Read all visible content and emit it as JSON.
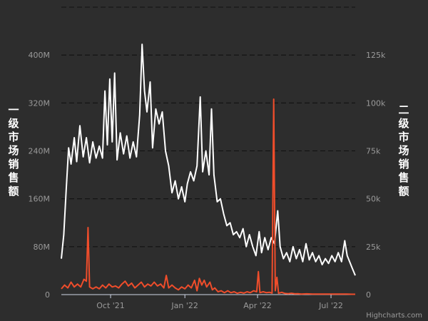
{
  "chart_data": {
    "type": "line",
    "credits": "Highcharts.com",
    "grid": "horizontal dashed",
    "legend": "none",
    "x_ticks": [
      "Oct '21",
      "Jan '22",
      "Apr '22",
      "Jul '22"
    ],
    "x_tick_dates": [
      "2021-10-01",
      "2022-01-01",
      "2022-04-01",
      "2022-07-01"
    ],
    "x_range": [
      "2021-08-01",
      "2022-07-31"
    ],
    "y_left": {
      "title": "一级市场销售额",
      "ticks": [
        "0",
        "80M",
        "160M",
        "240M",
        "320M",
        "400M"
      ],
      "tick_values": [
        0,
        80000000,
        160000000,
        240000000,
        320000000,
        400000000
      ],
      "range": [
        0,
        480000000
      ]
    },
    "y_right": {
      "title": "二级市场销售额",
      "ticks": [
        "0",
        "25k",
        "50k",
        "75k",
        "100k",
        "125k"
      ],
      "tick_values": [
        0,
        25000,
        50000,
        75000,
        100000,
        125000
      ],
      "range": [
        0,
        150000
      ]
    },
    "series": [
      {
        "axis": "left",
        "color": "#ffffff",
        "points": [
          [
            "2021-08-01",
            60000000
          ],
          [
            "2021-08-04",
            100000000
          ],
          [
            "2021-08-07",
            175000000
          ],
          [
            "2021-08-10",
            245000000
          ],
          [
            "2021-08-13",
            218000000
          ],
          [
            "2021-08-17",
            262000000
          ],
          [
            "2021-08-20",
            222000000
          ],
          [
            "2021-08-24",
            282000000
          ],
          [
            "2021-08-28",
            230000000
          ],
          [
            "2021-09-01",
            262000000
          ],
          [
            "2021-09-05",
            220000000
          ],
          [
            "2021-09-09",
            255000000
          ],
          [
            "2021-09-13",
            228000000
          ],
          [
            "2021-09-17",
            248000000
          ],
          [
            "2021-09-21",
            228000000
          ],
          [
            "2021-09-24",
            340000000
          ],
          [
            "2021-09-27",
            250000000
          ],
          [
            "2021-09-30",
            360000000
          ],
          [
            "2021-10-03",
            255000000
          ],
          [
            "2021-10-06",
            370000000
          ],
          [
            "2021-10-09",
            225000000
          ],
          [
            "2021-10-13",
            270000000
          ],
          [
            "2021-10-17",
            235000000
          ],
          [
            "2021-10-21",
            265000000
          ],
          [
            "2021-10-25",
            228000000
          ],
          [
            "2021-10-29",
            255000000
          ],
          [
            "2021-11-02",
            230000000
          ],
          [
            "2021-11-06",
            300000000
          ],
          [
            "2021-11-09",
            418000000
          ],
          [
            "2021-11-12",
            340000000
          ],
          [
            "2021-11-15",
            305000000
          ],
          [
            "2021-11-19",
            355000000
          ],
          [
            "2021-11-22",
            245000000
          ],
          [
            "2021-11-26",
            310000000
          ],
          [
            "2021-11-30",
            285000000
          ],
          [
            "2021-12-04",
            305000000
          ],
          [
            "2021-12-08",
            240000000
          ],
          [
            "2021-12-12",
            215000000
          ],
          [
            "2021-12-16",
            170000000
          ],
          [
            "2021-12-20",
            190000000
          ],
          [
            "2021-12-24",
            160000000
          ],
          [
            "2021-12-28",
            180000000
          ],
          [
            "2022-01-01",
            155000000
          ],
          [
            "2022-01-04",
            185000000
          ],
          [
            "2022-01-08",
            205000000
          ],
          [
            "2022-01-12",
            190000000
          ],
          [
            "2022-01-16",
            215000000
          ],
          [
            "2022-01-20",
            330000000
          ],
          [
            "2022-01-23",
            205000000
          ],
          [
            "2022-01-27",
            240000000
          ],
          [
            "2022-01-31",
            200000000
          ],
          [
            "2022-02-03",
            310000000
          ],
          [
            "2022-02-06",
            200000000
          ],
          [
            "2022-02-10",
            155000000
          ],
          [
            "2022-02-14",
            160000000
          ],
          [
            "2022-02-18",
            135000000
          ],
          [
            "2022-02-22",
            115000000
          ],
          [
            "2022-02-26",
            120000000
          ],
          [
            "2022-03-02",
            100000000
          ],
          [
            "2022-03-06",
            105000000
          ],
          [
            "2022-03-10",
            95000000
          ],
          [
            "2022-03-14",
            110000000
          ],
          [
            "2022-03-18",
            80000000
          ],
          [
            "2022-03-22",
            100000000
          ],
          [
            "2022-03-26",
            80000000
          ],
          [
            "2022-03-30",
            65000000
          ],
          [
            "2022-04-03",
            105000000
          ],
          [
            "2022-04-06",
            70000000
          ],
          [
            "2022-04-10",
            95000000
          ],
          [
            "2022-04-14",
            75000000
          ],
          [
            "2022-04-18",
            95000000
          ],
          [
            "2022-04-22",
            85000000
          ],
          [
            "2022-04-26",
            140000000
          ],
          [
            "2022-04-29",
            80000000
          ],
          [
            "2022-05-03",
            60000000
          ],
          [
            "2022-05-07",
            70000000
          ],
          [
            "2022-05-11",
            55000000
          ],
          [
            "2022-05-15",
            80000000
          ],
          [
            "2022-05-19",
            60000000
          ],
          [
            "2022-05-23",
            75000000
          ],
          [
            "2022-05-27",
            55000000
          ],
          [
            "2022-05-31",
            85000000
          ],
          [
            "2022-06-04",
            58000000
          ],
          [
            "2022-06-08",
            70000000
          ],
          [
            "2022-06-12",
            55000000
          ],
          [
            "2022-06-16",
            65000000
          ],
          [
            "2022-06-20",
            50000000
          ],
          [
            "2022-06-24",
            60000000
          ],
          [
            "2022-06-28",
            52000000
          ],
          [
            "2022-07-02",
            65000000
          ],
          [
            "2022-07-06",
            55000000
          ],
          [
            "2022-07-10",
            70000000
          ],
          [
            "2022-07-14",
            55000000
          ],
          [
            "2022-07-18",
            90000000
          ],
          [
            "2022-07-21",
            65000000
          ],
          [
            "2022-07-24",
            55000000
          ],
          [
            "2022-07-27",
            45000000
          ],
          [
            "2022-07-31",
            32000000
          ]
        ]
      },
      {
        "axis": "right",
        "color": "#ef4d2b",
        "points": [
          [
            "2021-08-01",
            3000
          ],
          [
            "2021-08-05",
            5000
          ],
          [
            "2021-08-09",
            3500
          ],
          [
            "2021-08-13",
            6500
          ],
          [
            "2021-08-17",
            4000
          ],
          [
            "2021-08-21",
            5500
          ],
          [
            "2021-08-25",
            4000
          ],
          [
            "2021-08-29",
            8000
          ],
          [
            "2021-09-01",
            7000
          ],
          [
            "2021-09-03",
            35000
          ],
          [
            "2021-09-05",
            4000
          ],
          [
            "2021-09-09",
            3000
          ],
          [
            "2021-09-13",
            4000
          ],
          [
            "2021-09-17",
            3000
          ],
          [
            "2021-09-21",
            5000
          ],
          [
            "2021-09-25",
            3500
          ],
          [
            "2021-09-29",
            5500
          ],
          [
            "2021-10-03",
            4000
          ],
          [
            "2021-10-07",
            4500
          ],
          [
            "2021-10-11",
            3500
          ],
          [
            "2021-10-15",
            5500
          ],
          [
            "2021-10-19",
            7000
          ],
          [
            "2021-10-23",
            4500
          ],
          [
            "2021-10-27",
            6000
          ],
          [
            "2021-10-31",
            3500
          ],
          [
            "2021-11-04",
            5000
          ],
          [
            "2021-11-08",
            6500
          ],
          [
            "2021-11-12",
            4000
          ],
          [
            "2021-11-16",
            5500
          ],
          [
            "2021-11-20",
            4500
          ],
          [
            "2021-11-24",
            6500
          ],
          [
            "2021-11-28",
            4500
          ],
          [
            "2021-12-02",
            5500
          ],
          [
            "2021-12-06",
            3500
          ],
          [
            "2021-12-09",
            10000
          ],
          [
            "2021-12-12",
            3500
          ],
          [
            "2021-12-16",
            5000
          ],
          [
            "2021-12-20",
            3500
          ],
          [
            "2021-12-24",
            2500
          ],
          [
            "2021-12-28",
            4000
          ],
          [
            "2022-01-01",
            3000
          ],
          [
            "2022-01-05",
            5000
          ],
          [
            "2022-01-09",
            3500
          ],
          [
            "2022-01-13",
            7500
          ],
          [
            "2022-01-16",
            2000
          ],
          [
            "2022-01-19",
            8500
          ],
          [
            "2022-01-22",
            5000
          ],
          [
            "2022-01-25",
            7500
          ],
          [
            "2022-01-28",
            4000
          ],
          [
            "2022-02-01",
            6500
          ],
          [
            "2022-02-04",
            2500
          ],
          [
            "2022-02-07",
            3500
          ],
          [
            "2022-02-11",
            1500
          ],
          [
            "2022-02-15",
            2000
          ],
          [
            "2022-02-19",
            1000
          ],
          [
            "2022-02-23",
            2000
          ],
          [
            "2022-02-27",
            1000
          ],
          [
            "2022-03-03",
            1500
          ],
          [
            "2022-03-07",
            700
          ],
          [
            "2022-03-11",
            1200
          ],
          [
            "2022-03-15",
            800
          ],
          [
            "2022-03-19",
            1500
          ],
          [
            "2022-03-23",
            1000
          ],
          [
            "2022-03-27",
            2000
          ],
          [
            "2022-03-31",
            1500
          ],
          [
            "2022-04-02",
            12000
          ],
          [
            "2022-04-04",
            1000
          ],
          [
            "2022-04-08",
            1500
          ],
          [
            "2022-04-12",
            1000
          ],
          [
            "2022-04-16",
            1200
          ],
          [
            "2022-04-19",
            800
          ],
          [
            "2022-04-21",
            102000
          ],
          [
            "2022-04-23",
            2000
          ],
          [
            "2022-04-25",
            9000
          ],
          [
            "2022-04-27",
            700
          ],
          [
            "2022-05-01",
            1200
          ],
          [
            "2022-05-05",
            600
          ],
          [
            "2022-05-09",
            500
          ],
          [
            "2022-05-13",
            700
          ],
          [
            "2022-05-17",
            400
          ],
          [
            "2022-05-21",
            500
          ],
          [
            "2022-05-25",
            300
          ],
          [
            "2022-06-01",
            400
          ],
          [
            "2022-06-08",
            250
          ],
          [
            "2022-06-15",
            300
          ],
          [
            "2022-06-22",
            250
          ],
          [
            "2022-06-29",
            300
          ],
          [
            "2022-07-06",
            250
          ],
          [
            "2022-07-13",
            300
          ],
          [
            "2022-07-20",
            250
          ],
          [
            "2022-07-27",
            200
          ],
          [
            "2022-07-31",
            200
          ]
        ]
      }
    ]
  }
}
